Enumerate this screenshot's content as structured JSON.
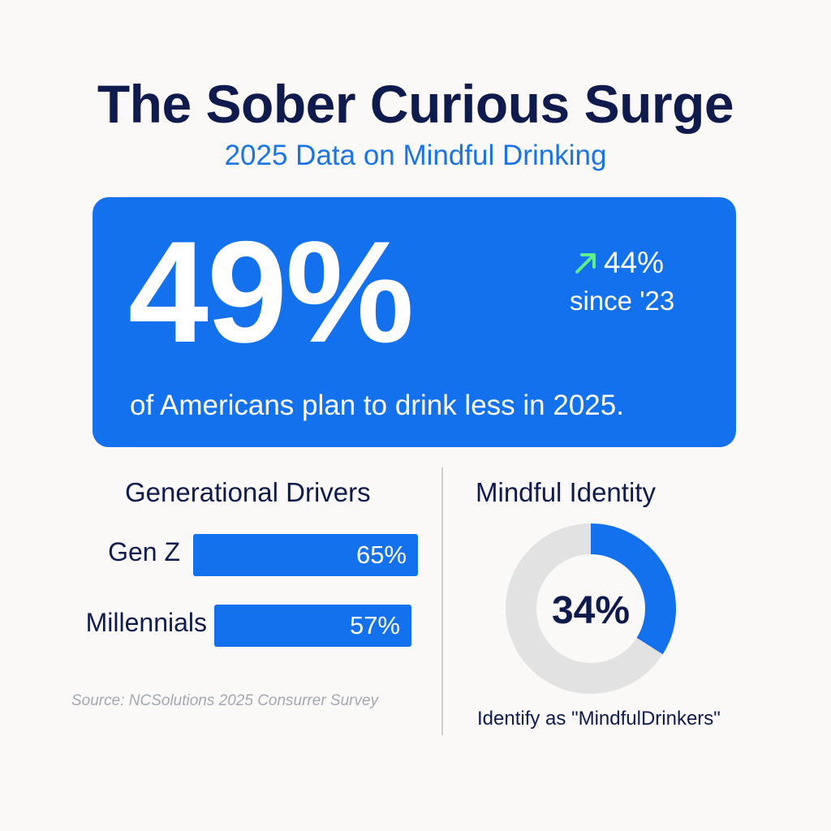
{
  "header": {
    "title": "The Sober Curious Surge",
    "subtitle": "2025 Data on Mindful Drinking"
  },
  "hero": {
    "value": "49%",
    "trend_value": "44%",
    "trend_label": "since '23",
    "caption": "of Americans plan to drink less in 2025."
  },
  "generational": {
    "title": "Generational Drivers",
    "source": "Source: NCSolutions 2025 Consurrer Survey"
  },
  "identity": {
    "title": "Mindful Identity",
    "caption": "Identify as \"MindfulDrinkers\""
  },
  "colors": {
    "primary": "#1471ed",
    "navy": "#0f1b4d",
    "trend_arrow": "#5cf08a",
    "donut_track": "#e2e2e2"
  },
  "icons": {
    "trend": "trend-up-arrow-icon"
  },
  "chart_data": [
    {
      "type": "bar",
      "orientation": "horizontal",
      "title": "Generational Drivers",
      "categories": [
        "Gen Z",
        "Millennials"
      ],
      "values": [
        65,
        57
      ],
      "value_labels": [
        "65%",
        "57%"
      ],
      "unit": "%"
    },
    {
      "type": "pie",
      "style": "donut",
      "title": "Mindful Identity",
      "values": [
        34,
        66
      ],
      "center_label": "34%",
      "caption": "Identify as \"MindfulDrinkers\""
    }
  ]
}
